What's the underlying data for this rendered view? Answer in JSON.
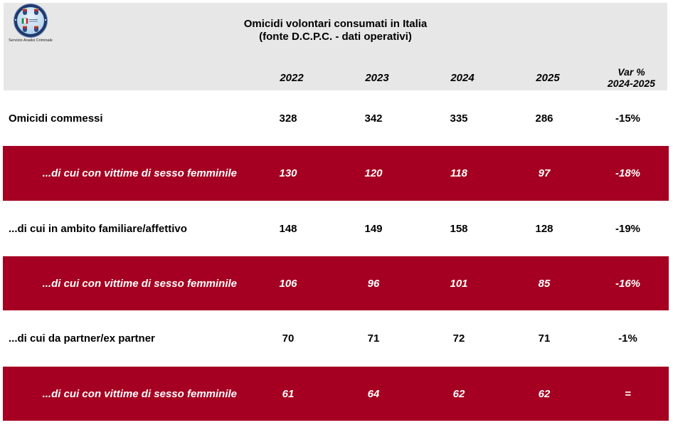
{
  "logo": {
    "caption": "Servizio Analisi Criminale"
  },
  "chart_data": {
    "type": "table",
    "title": "Omicidi volontari consumati in Italia",
    "subtitle": "(fonte D.C.P.C. - dati operativi)",
    "columns": [
      "2022",
      "2023",
      "2024",
      "2025",
      "Var % 2024-2025"
    ],
    "var_header": {
      "line1": "Var %",
      "line2": "2024-2025"
    },
    "rows": [
      {
        "label": "Omicidi commessi",
        "values": [
          328,
          342,
          335,
          286
        ],
        "var_pct": "-15%",
        "highlighted": false
      },
      {
        "label": "...di cui con vittime di sesso femminile",
        "values": [
          130,
          120,
          118,
          97
        ],
        "var_pct": "-18%",
        "highlighted": true
      },
      {
        "label": "...di cui in ambito familiare/affettivo",
        "values": [
          148,
          149,
          158,
          128
        ],
        "var_pct": "-19%",
        "highlighted": false
      },
      {
        "label": "...di cui con vittime di sesso femminile",
        "values": [
          106,
          96,
          101,
          85
        ],
        "var_pct": "-16%",
        "highlighted": true
      },
      {
        "label": "...di cui da partner/ex partner",
        "values": [
          70,
          71,
          72,
          71
        ],
        "var_pct": "-1%",
        "highlighted": false
      },
      {
        "label": "...di cui con vittime di sesso femminile",
        "values": [
          61,
          64,
          62,
          62
        ],
        "var_pct": "=",
        "highlighted": true
      }
    ],
    "colors": {
      "header_bg": "#e7e7e7",
      "highlight_row_bg": "#a50021",
      "highlight_text": "#ffffff",
      "plain_text": "#000000"
    }
  }
}
